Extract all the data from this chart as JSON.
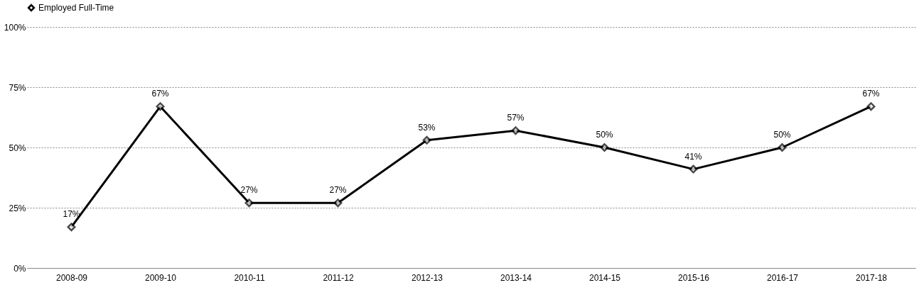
{
  "chart_data": {
    "type": "line",
    "categories": [
      "2008-09",
      "2009-10",
      "2010-11",
      "2011-12",
      "2012-13",
      "2013-14",
      "2014-15",
      "2015-16",
      "2016-17",
      "2017-18"
    ],
    "series": [
      {
        "name": "Employed Full-Time",
        "color": "#000000",
        "values": [
          17,
          67,
          27,
          27,
          53,
          57,
          50,
          41,
          50,
          67
        ],
        "value_labels": [
          "17%",
          "67%",
          "27%",
          "27%",
          "53%",
          "57%",
          "50%",
          "41%",
          "50%",
          "67%"
        ]
      }
    ],
    "ylim": [
      0,
      100
    ],
    "yticks": [
      {
        "value": 0,
        "label": "0%"
      },
      {
        "value": 25,
        "label": "25%"
      },
      {
        "value": 50,
        "label": "50%"
      },
      {
        "value": 75,
        "label": "75%"
      },
      {
        "value": 100,
        "label": "100%"
      }
    ],
    "grid": "y",
    "legend": "top",
    "marker": "diamond",
    "line_style": "solid"
  }
}
